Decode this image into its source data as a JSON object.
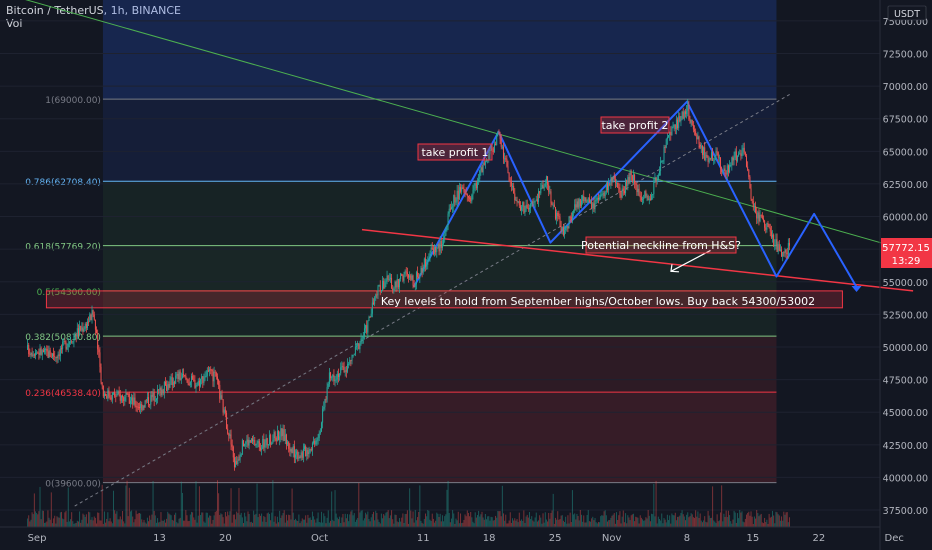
{
  "header": {
    "symbol_line": "Bitcoin / TetherUS, 1h, BINANCE",
    "vol_label": "Vol"
  },
  "currency": "USDT",
  "price_now": {
    "value": "57772.15",
    "countdown": "13:29"
  },
  "colors": {
    "background": "#131722",
    "candle_up": "#26a69a",
    "candle_down": "#ef5350",
    "pattern_line": "#2962ff",
    "trendline_green": "#4caf50",
    "neckline_red": "#f23645",
    "price_tag": "#f23645"
  },
  "annotations": {
    "take_profit_1": "take profit 1",
    "take_profit_2": "take profit 2",
    "neckline_note": "Potential neckline from H&S?",
    "key_levels": "Key levels to hold from September highs/October lows. Buy back 54300/53002"
  },
  "chart_data": {
    "type": "candlestick",
    "title": "Bitcoin / TetherUS, 1h, BINANCE",
    "y_axis": {
      "unit": "USDT",
      "range": [
        36200,
        76600
      ],
      "ticks": [
        "37500.00",
        "40000.00",
        "42500.00",
        "45000.00",
        "47500.00",
        "50000.00",
        "52500.00",
        "55000.00",
        "57500.00",
        "60000.00",
        "62500.00",
        "65000.00",
        "67500.00",
        "70000.00",
        "72500.00",
        "75000.00"
      ],
      "tick_values": [
        37500,
        40000,
        42500,
        45000,
        47500,
        50000,
        52500,
        55000,
        57500,
        60000,
        62500,
        65000,
        67500,
        70000,
        72500,
        75000
      ]
    },
    "x_axis": {
      "ticks": [
        "Sep",
        "13",
        "20",
        "Oct",
        "11",
        "18",
        "25",
        "Nov",
        "8",
        "15",
        "22",
        "Dec"
      ],
      "tick_days": [
        0,
        13,
        20,
        30,
        41,
        48,
        55,
        61,
        69,
        76,
        83,
        91
      ]
    },
    "fib_levels": [
      {
        "label": "1(69000.00)",
        "value": 69000,
        "color": "#787b86"
      },
      {
        "label": "0.786(62708.40)",
        "value": 62708.4,
        "color": "#64b5f6"
      },
      {
        "label": "0.618(57769.20)",
        "value": 57769.2,
        "color": "#81c784"
      },
      {
        "label": "0.5(54300.00)",
        "value": 54300,
        "color": "#4caf50"
      },
      {
        "label": "0.382(50830.80)",
        "value": 50830.8,
        "color": "#81c784"
      },
      {
        "label": "0.236(46538.40)",
        "value": 46538.4,
        "color": "#f23645"
      },
      {
        "label": "0(39600.00)",
        "value": 39600,
        "color": "#787b86"
      }
    ],
    "price_path": [
      {
        "day": -1,
        "price": 49800
      },
      {
        "day": 2,
        "price": 49400
      },
      {
        "day": 4,
        "price": 51000
      },
      {
        "day": 5,
        "price": 51600
      },
      {
        "day": 6,
        "price": 52600
      },
      {
        "day": 7,
        "price": 46500
      },
      {
        "day": 9,
        "price": 46200
      },
      {
        "day": 11,
        "price": 45500
      },
      {
        "day": 13,
        "price": 46600
      },
      {
        "day": 15,
        "price": 47800
      },
      {
        "day": 17,
        "price": 47200
      },
      {
        "day": 18,
        "price": 48000
      },
      {
        "day": 19,
        "price": 47600
      },
      {
        "day": 20.5,
        "price": 43000
      },
      {
        "day": 21,
        "price": 40900
      },
      {
        "day": 22,
        "price": 42800
      },
      {
        "day": 24,
        "price": 42500
      },
      {
        "day": 26,
        "price": 43500
      },
      {
        "day": 27,
        "price": 42000
      },
      {
        "day": 28,
        "price": 41800
      },
      {
        "day": 29,
        "price": 42300
      },
      {
        "day": 30,
        "price": 43600
      },
      {
        "day": 31,
        "price": 47600
      },
      {
        "day": 33,
        "price": 48500
      },
      {
        "day": 35,
        "price": 51500
      },
      {
        "day": 36,
        "price": 54000
      },
      {
        "day": 37,
        "price": 55200
      },
      {
        "day": 38,
        "price": 54600
      },
      {
        "day": 39,
        "price": 55600
      },
      {
        "day": 40,
        "price": 55000
      },
      {
        "day": 41,
        "price": 56200
      },
      {
        "day": 42,
        "price": 57500
      },
      {
        "day": 43,
        "price": 57800
      },
      {
        "day": 44,
        "price": 61000
      },
      {
        "day": 45,
        "price": 62000
      },
      {
        "day": 46,
        "price": 61400
      },
      {
        "day": 47,
        "price": 63300
      },
      {
        "day": 48,
        "price": 64500
      },
      {
        "day": 49,
        "price": 66500
      },
      {
        "day": 50,
        "price": 63300
      },
      {
        "day": 51,
        "price": 61000
      },
      {
        "day": 52,
        "price": 60500
      },
      {
        "day": 53,
        "price": 61200
      },
      {
        "day": 54,
        "price": 63000
      },
      {
        "day": 55,
        "price": 60300
      },
      {
        "day": 56,
        "price": 58600
      },
      {
        "day": 57,
        "price": 60600
      },
      {
        "day": 58,
        "price": 61400
      },
      {
        "day": 59,
        "price": 60800
      },
      {
        "day": 60,
        "price": 61500
      },
      {
        "day": 61,
        "price": 63000
      },
      {
        "day": 62,
        "price": 61500
      },
      {
        "day": 63,
        "price": 63300
      },
      {
        "day": 64,
        "price": 61800
      },
      {
        "day": 65,
        "price": 61400
      },
      {
        "day": 66,
        "price": 63500
      },
      {
        "day": 67,
        "price": 66000
      },
      {
        "day": 68,
        "price": 67200
      },
      {
        "day": 69,
        "price": 68300
      },
      {
        "day": 70,
        "price": 66000
      },
      {
        "day": 71,
        "price": 64500
      },
      {
        "day": 72,
        "price": 64800
      },
      {
        "day": 73,
        "price": 63300
      },
      {
        "day": 74,
        "price": 64500
      },
      {
        "day": 75,
        "price": 65300
      },
      {
        "day": 76,
        "price": 60500
      },
      {
        "day": 77,
        "price": 59800
      },
      {
        "day": 78,
        "price": 58500
      },
      {
        "day": 79,
        "price": 57000
      },
      {
        "day": 80,
        "price": 57800
      }
    ],
    "lines": {
      "pattern": [
        [
          40,
          54600
        ],
        [
          49,
          66500
        ],
        [
          54.5,
          58000
        ],
        [
          69,
          68800
        ],
        [
          78.5,
          55400
        ],
        [
          82.5,
          60200
        ],
        [
          87,
          54600
        ]
      ],
      "dashed_trend": [
        [
          4,
          37800
        ],
        [
          80,
          69400
        ]
      ],
      "green_trend": [
        [
          -3,
          77000
        ],
        [
          92,
          57500
        ]
      ],
      "neckline": [
        [
          34.5,
          59000
        ],
        [
          93,
          54300
        ]
      ],
      "neckline_arrow": [
        [
          71.5,
          57400
        ],
        [
          67.3,
          55800
        ]
      ]
    },
    "boxes": {
      "key_levels": {
        "y_top": 54300,
        "y_bottom": 53002,
        "x_start": 1,
        "x_end": 85.5
      }
    },
    "volume_note": "histogram bars at bottom"
  }
}
